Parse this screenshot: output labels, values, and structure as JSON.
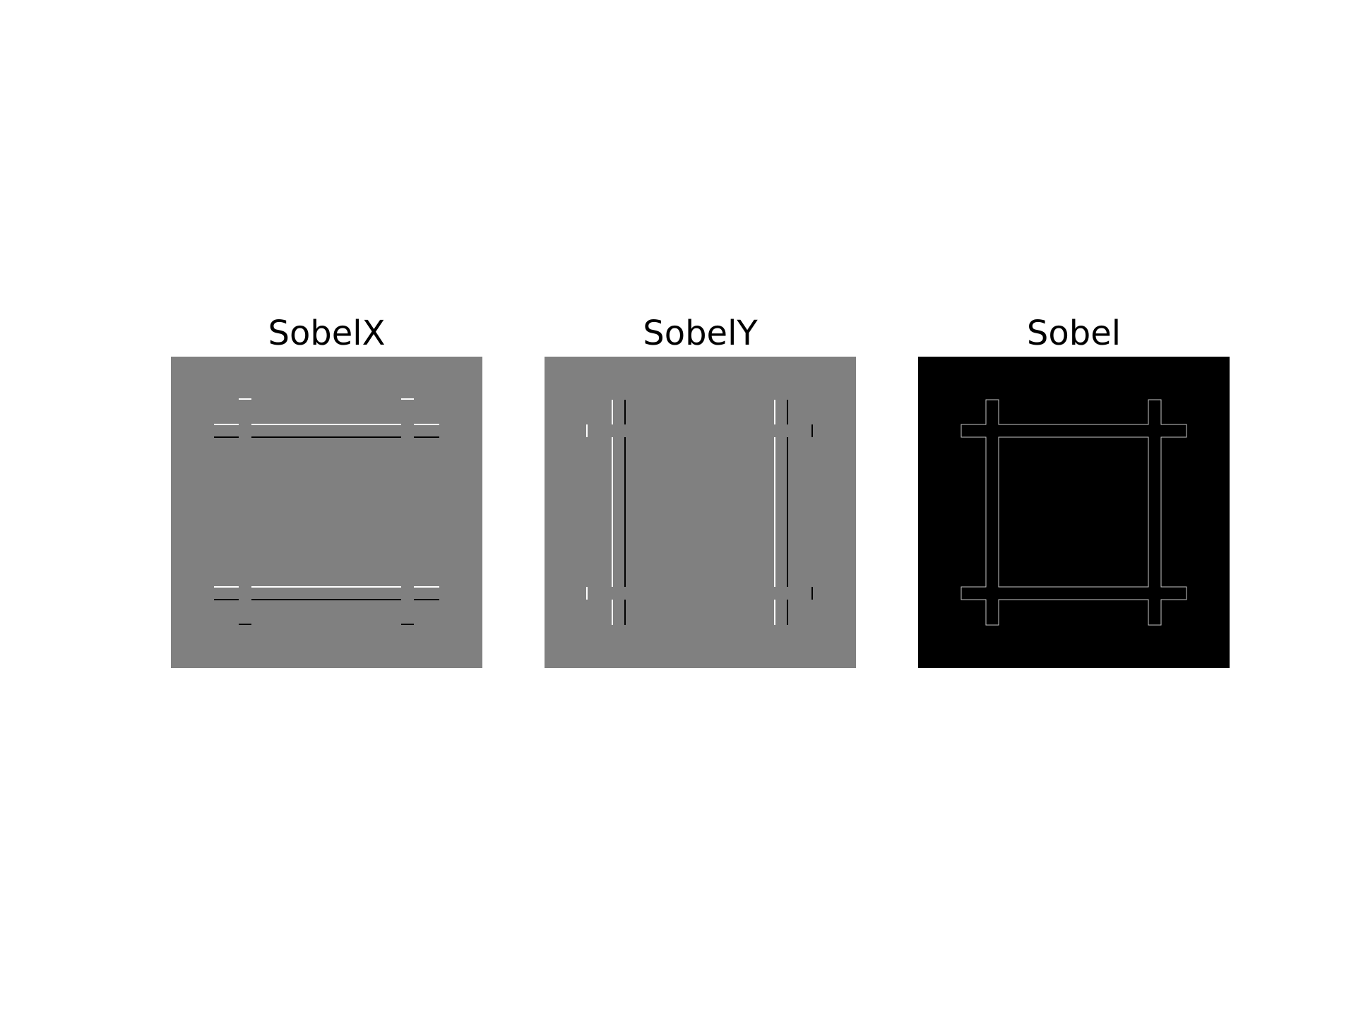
{
  "figure": {
    "panels": [
      {
        "title": "SobelX",
        "background": "#808080",
        "edge_colors": [
          "#ffffff",
          "#000000"
        ],
        "edge_orientation": "horizontal"
      },
      {
        "title": "SobelY",
        "background": "#808080",
        "edge_colors": [
          "#ffffff",
          "#000000"
        ],
        "edge_orientation": "vertical"
      },
      {
        "title": "Sobel",
        "background": "#000000",
        "edge_colors": [
          "#c8c8c8"
        ],
        "edge_orientation": "outline"
      }
    ]
  }
}
